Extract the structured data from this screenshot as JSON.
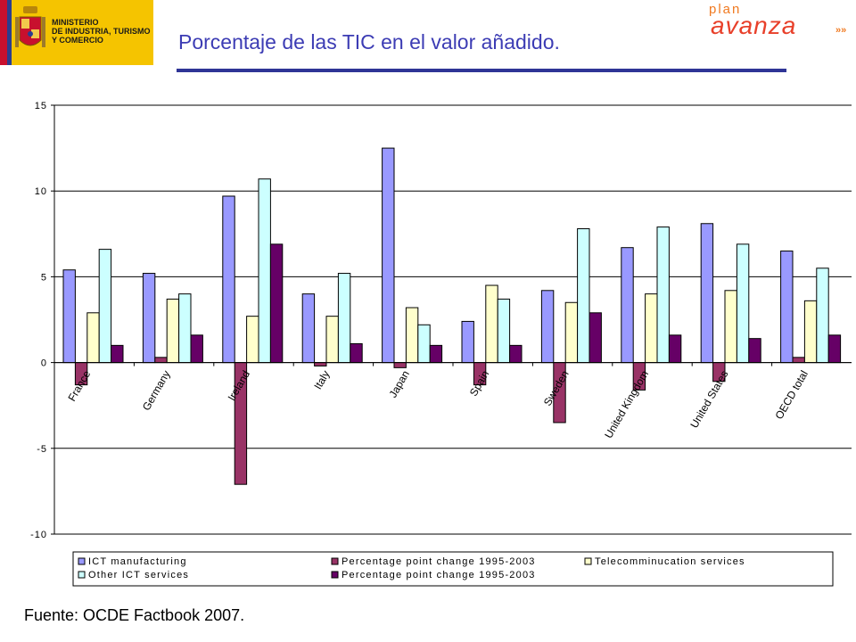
{
  "header": {
    "ministry_lines": [
      "MINISTERIO",
      "DE INDUSTRIA, TURISMO",
      "Y COMERCIO"
    ],
    "title": "Porcentaje de las TIC en el valor añadido.",
    "brand_small": "plan",
    "brand_big": "avanza",
    "brand_suffix": "»»",
    "colors": {
      "title": "#3c3cb4",
      "rule": "#2f3596",
      "logo_bg": "#f5c400",
      "brand": "#e8402a"
    }
  },
  "footer": {
    "source": "Fuente: OCDE Factbook 2007."
  },
  "chart_data": {
    "type": "bar",
    "title": "",
    "xlabel": "",
    "ylabel": "",
    "ylim": [
      -10,
      15
    ],
    "yticks": [
      15,
      10,
      5,
      0,
      -5,
      -10
    ],
    "ytick_labels": [
      "15",
      "10",
      "5",
      "0",
      "-5",
      "-10"
    ],
    "grid": true,
    "legend_position": "bottom",
    "categories": [
      "France",
      "Germany",
      "Ireland",
      "Italy",
      "Japan",
      "Spain",
      "Sweden",
      "United Kingdom",
      "United States",
      "OECD total"
    ],
    "series": [
      {
        "name": "ICT manufacturing",
        "color": "#9999ff",
        "values": [
          5.4,
          5.2,
          9.7,
          4.0,
          12.5,
          2.4,
          4.2,
          6.7,
          8.1,
          6.5
        ]
      },
      {
        "name": "Percentage point change 1995-2003",
        "color": "#993366",
        "values": [
          -1.3,
          0.3,
          -7.1,
          -0.2,
          -0.3,
          -1.3,
          -3.5,
          -1.6,
          -1.1,
          0.3
        ]
      },
      {
        "name": "Telecomminucation services",
        "color": "#ffffcc",
        "values": [
          2.9,
          3.7,
          2.7,
          2.7,
          3.2,
          4.5,
          3.5,
          4.0,
          4.2,
          3.6
        ]
      },
      {
        "name": "Other ICT services",
        "color": "#ccffff",
        "values": [
          6.6,
          4.0,
          10.7,
          5.2,
          2.2,
          3.7,
          7.8,
          7.9,
          6.9,
          5.5
        ]
      },
      {
        "name": "Percentage point change 1995-2003",
        "color": "#660066",
        "values": [
          1.0,
          1.6,
          6.9,
          1.1,
          1.0,
          1.0,
          2.9,
          1.6,
          1.4,
          1.6
        ]
      }
    ]
  }
}
